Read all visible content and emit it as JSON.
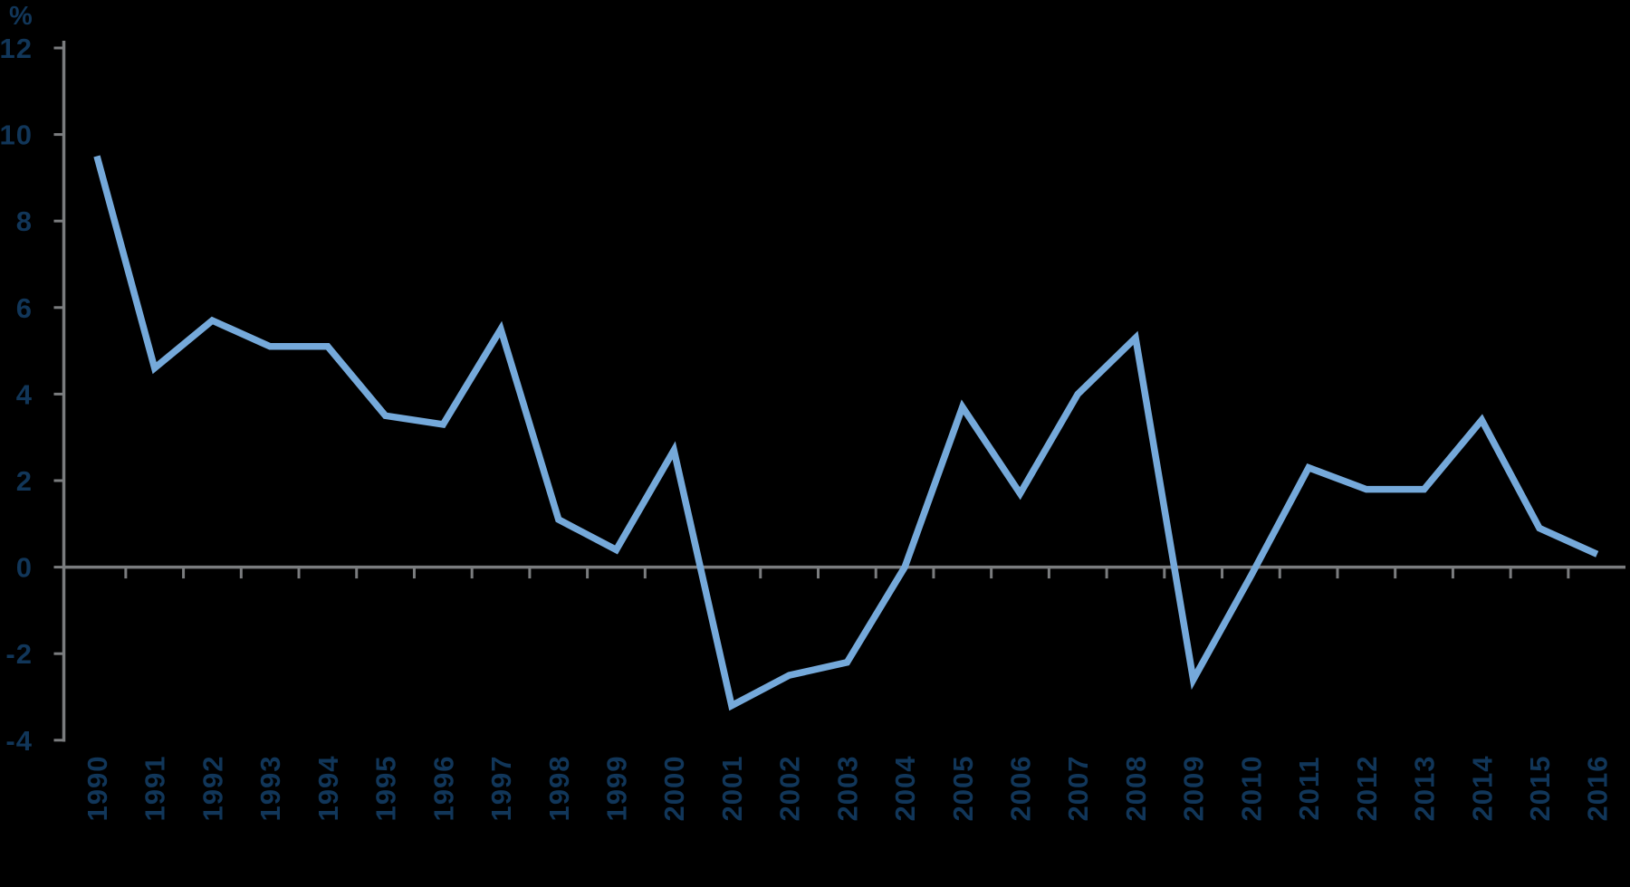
{
  "chart_data": {
    "type": "line",
    "title": "",
    "ylabel": "%",
    "xlabel": "",
    "categories": [
      "1990",
      "1991",
      "1992",
      "1993",
      "1994",
      "1995",
      "1996",
      "1997",
      "1998",
      "1999",
      "2000",
      "2001",
      "2002",
      "2003",
      "2004",
      "2005",
      "2006",
      "2007",
      "2008",
      "2009",
      "2010",
      "2011",
      "2012",
      "2013",
      "2014",
      "2015",
      "2016"
    ],
    "values": [
      9.5,
      4.6,
      5.7,
      5.1,
      5.1,
      3.5,
      3.3,
      5.5,
      1.1,
      0.4,
      2.7,
      -3.2,
      -2.5,
      -2.2,
      0.0,
      3.7,
      1.7,
      4.0,
      5.3,
      -2.6,
      -0.2,
      2.3,
      1.8,
      1.8,
      3.4,
      0.9,
      0.3
    ],
    "y_ticks": [
      12,
      10,
      8,
      6,
      4,
      2,
      0,
      -2,
      -4
    ],
    "ylim": [
      -4,
      12
    ],
    "grid": "zero-baseline-only",
    "legend": "none",
    "x_tick_style": "minor-ticks-between-years",
    "x_label_rotation": -90
  },
  "colors": {
    "background": "#000000",
    "line": "#75A9DA",
    "axis": "#7A7C7E",
    "labels": "#113659"
  }
}
